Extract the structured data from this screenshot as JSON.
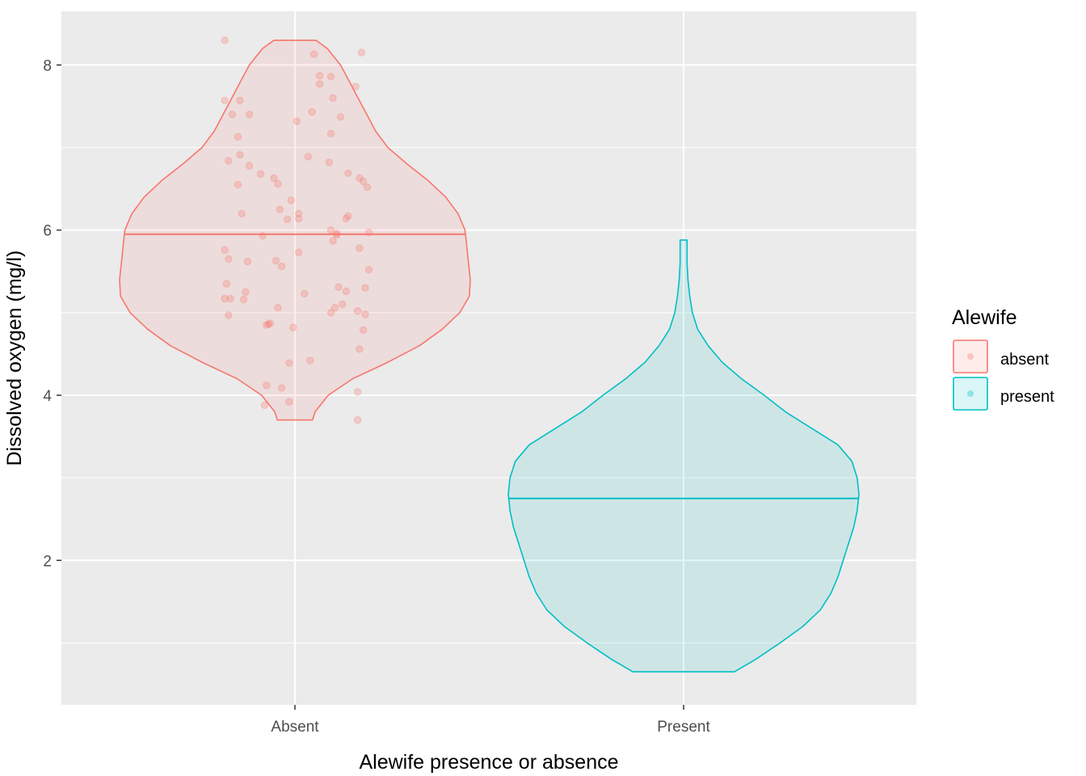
{
  "chart_data": {
    "type": "violin",
    "title": "",
    "xlabel": "Alewife presence or absence",
    "ylabel": "Dissolved oxygen (mg/l)",
    "categories": [
      "Absent",
      "Present"
    ],
    "ylim": [
      0.25,
      8.65
    ],
    "yticks": [
      2,
      4,
      6,
      8
    ],
    "grid": true,
    "legend": {
      "title": "Alewife",
      "position": "right",
      "entries": [
        {
          "label": "absent",
          "color": "#F8766D"
        },
        {
          "label": "present",
          "color": "#00BFC4"
        }
      ]
    },
    "series": [
      {
        "name": "absent",
        "category": "Absent",
        "color": "#F8766D",
        "median": 5.95,
        "min": 3.7,
        "max": 8.3,
        "violin_profile": [
          [
            3.7,
            0.1
          ],
          [
            3.8,
            0.115
          ],
          [
            4.0,
            0.19
          ],
          [
            4.2,
            0.33
          ],
          [
            4.4,
            0.53
          ],
          [
            4.6,
            0.71
          ],
          [
            4.8,
            0.84
          ],
          [
            5.0,
            0.94
          ],
          [
            5.2,
            0.995
          ],
          [
            5.4,
            1.0
          ],
          [
            5.6,
            0.99
          ],
          [
            5.8,
            0.98
          ],
          [
            6.0,
            0.97
          ],
          [
            6.2,
            0.93
          ],
          [
            6.4,
            0.86
          ],
          [
            6.6,
            0.76
          ],
          [
            6.8,
            0.64
          ],
          [
            7.0,
            0.53
          ],
          [
            7.2,
            0.46
          ],
          [
            7.4,
            0.41
          ],
          [
            7.6,
            0.36
          ],
          [
            7.8,
            0.31
          ],
          [
            8.0,
            0.26
          ],
          [
            8.2,
            0.185
          ],
          [
            8.3,
            0.12
          ]
        ],
        "points": [
          [
            -0.37,
            8.3
          ],
          [
            0.1,
            8.13
          ],
          [
            0.35,
            8.15
          ],
          [
            -0.37,
            7.57
          ],
          [
            -0.33,
            7.4
          ],
          [
            -0.29,
            7.57
          ],
          [
            -0.24,
            7.4
          ],
          [
            0.13,
            7.87
          ],
          [
            0.19,
            7.86
          ],
          [
            0.13,
            7.77
          ],
          [
            0.32,
            7.74
          ],
          [
            0.09,
            7.43
          ],
          [
            0.2,
            7.6
          ],
          [
            0.24,
            7.37
          ],
          [
            0.01,
            7.32
          ],
          [
            0.19,
            7.17
          ],
          [
            -0.3,
            7.13
          ],
          [
            -0.35,
            6.84
          ],
          [
            -0.29,
            6.91
          ],
          [
            -0.24,
            6.78
          ],
          [
            -0.3,
            6.55
          ],
          [
            -0.18,
            6.68
          ],
          [
            -0.11,
            6.63
          ],
          [
            -0.09,
            6.56
          ],
          [
            0.07,
            6.89
          ],
          [
            0.18,
            6.82
          ],
          [
            0.28,
            6.69
          ],
          [
            0.34,
            6.63
          ],
          [
            0.36,
            6.59
          ],
          [
            0.38,
            6.52
          ],
          [
            -0.28,
            6.2
          ],
          [
            -0.08,
            6.25
          ],
          [
            -0.04,
            6.13
          ],
          [
            -0.02,
            6.36
          ],
          [
            0.02,
            6.2
          ],
          [
            0.02,
            6.14
          ],
          [
            0.27,
            6.14
          ],
          [
            0.28,
            6.17
          ],
          [
            0.19,
            6.0
          ],
          [
            0.2,
            5.87
          ],
          [
            0.22,
            5.96
          ],
          [
            0.22,
            5.94
          ],
          [
            0.39,
            5.97
          ],
          [
            -0.37,
            5.76
          ],
          [
            -0.35,
            5.65
          ],
          [
            -0.25,
            5.62
          ],
          [
            -0.17,
            5.93
          ],
          [
            -0.1,
            5.63
          ],
          [
            -0.07,
            5.56
          ],
          [
            0.02,
            5.73
          ],
          [
            0.34,
            5.78
          ],
          [
            0.39,
            5.52
          ],
          [
            -0.37,
            5.17
          ],
          [
            -0.36,
            5.35
          ],
          [
            -0.34,
            5.17
          ],
          [
            -0.27,
            5.16
          ],
          [
            -0.26,
            5.25
          ],
          [
            0.05,
            5.23
          ],
          [
            0.23,
            5.31
          ],
          [
            0.27,
            5.26
          ],
          [
            0.37,
            5.3
          ],
          [
            -0.35,
            4.97
          ],
          [
            -0.15,
            4.85
          ],
          [
            -0.14,
            4.86
          ],
          [
            -0.13,
            4.87
          ],
          [
            -0.09,
            5.06
          ],
          [
            -0.01,
            4.82
          ],
          [
            0.19,
            5.0
          ],
          [
            0.21,
            5.06
          ],
          [
            0.25,
            5.1
          ],
          [
            0.33,
            5.02
          ],
          [
            0.37,
            4.98
          ],
          [
            0.36,
            4.79
          ],
          [
            0.34,
            4.56
          ],
          [
            -0.15,
            4.12
          ],
          [
            -0.16,
            3.88
          ],
          [
            -0.07,
            4.09
          ],
          [
            -0.03,
            4.39
          ],
          [
            -0.03,
            3.92
          ],
          [
            0.08,
            4.42
          ],
          [
            0.33,
            4.04
          ],
          [
            0.33,
            3.7
          ]
        ]
      },
      {
        "name": "present",
        "category": "Present",
        "color": "#00BFC4",
        "median": 2.75,
        "min": 0.65,
        "max": 5.88,
        "violin_profile": [
          [
            0.65,
            0.29
          ],
          [
            0.8,
            0.41
          ],
          [
            1.0,
            0.55
          ],
          [
            1.2,
            0.68
          ],
          [
            1.4,
            0.78
          ],
          [
            1.6,
            0.84
          ],
          [
            1.8,
            0.88
          ],
          [
            2.0,
            0.91
          ],
          [
            2.2,
            0.94
          ],
          [
            2.4,
            0.97
          ],
          [
            2.6,
            0.99
          ],
          [
            2.8,
            1.0
          ],
          [
            3.0,
            0.99
          ],
          [
            3.2,
            0.96
          ],
          [
            3.4,
            0.88
          ],
          [
            3.6,
            0.73
          ],
          [
            3.8,
            0.58
          ],
          [
            4.0,
            0.46
          ],
          [
            4.2,
            0.33
          ],
          [
            4.4,
            0.22
          ],
          [
            4.6,
            0.14
          ],
          [
            4.8,
            0.08
          ],
          [
            5.0,
            0.05
          ],
          [
            5.2,
            0.035
          ],
          [
            5.4,
            0.025
          ],
          [
            5.6,
            0.02
          ],
          [
            5.75,
            0.02
          ],
          [
            5.88,
            0.02
          ]
        ]
      }
    ]
  }
}
